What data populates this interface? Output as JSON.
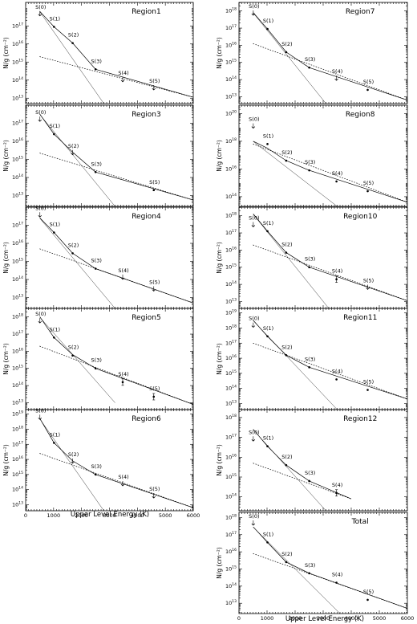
{
  "figure": {
    "xlabel": "Upper Level Energy (K)",
    "ylabel": "N/g (cm⁻²)",
    "x_ticks": [
      0,
      1000,
      2000,
      3000,
      4000,
      5000,
      6000
    ]
  },
  "chart_data": [
    {
      "type": "scatter",
      "title": "Region1",
      "xlim": [
        0,
        6000
      ],
      "ylim_log10": [
        12.7,
        18.3
      ],
      "y_ticks_log10": [
        13,
        14,
        15,
        16,
        17
      ],
      "points": [
        {
          "label": "S(0)",
          "x": 510,
          "y_log10": 17.6,
          "kind": "upper_limit"
        },
        {
          "label": "S(1)",
          "x": 1015,
          "y_log10": 16.95,
          "kind": "detection"
        },
        {
          "label": "S(2)",
          "x": 1682,
          "y_log10": 16.05,
          "kind": "detection"
        },
        {
          "label": "S(3)",
          "x": 2504,
          "y_log10": 14.6,
          "kind": "detection"
        },
        {
          "label": "S(4)",
          "x": 3474,
          "y_log10": 13.95,
          "kind": "upper_limit"
        },
        {
          "label": "S(5)",
          "x": 4586,
          "y_log10": 13.5,
          "kind": "upper_limit"
        }
      ],
      "fits": [
        {
          "style": "dashed",
          "x": [
            500,
            6000
          ],
          "y_log10": [
            15.3,
            13.05
          ]
        },
        {
          "style": "dotted",
          "x": [
            500,
            2800
          ],
          "y_log10": [
            17.8,
            12.7
          ]
        },
        {
          "style": "solid",
          "x": [
            510,
            1015,
            1682,
            2504,
            6000
          ],
          "y_log10": [
            17.8,
            16.95,
            16.05,
            14.6,
            13.05
          ]
        }
      ]
    },
    {
      "type": "scatter",
      "title": "Region3",
      "xlim": [
        0,
        6000
      ],
      "ylim_log10": [
        12.4,
        18.0
      ],
      "y_ticks_log10": [
        13,
        14,
        15,
        16,
        17
      ],
      "points": [
        {
          "label": "S(0)",
          "x": 510,
          "y_log10": 17.15,
          "kind": "upper_limit"
        },
        {
          "label": "S(1)",
          "x": 1015,
          "y_log10": 16.4,
          "kind": "detection"
        },
        {
          "label": "S(2)",
          "x": 1682,
          "y_log10": 15.3,
          "kind": "upper_limit"
        },
        {
          "label": "S(3)",
          "x": 2504,
          "y_log10": 14.3,
          "kind": "detection"
        },
        {
          "label": "S(5)",
          "x": 4586,
          "y_log10": 13.3,
          "kind": "detection"
        }
      ],
      "fits": [
        {
          "style": "dashed",
          "x": [
            500,
            6000
          ],
          "y_log10": [
            15.35,
            12.75
          ]
        },
        {
          "style": "dotted",
          "x": [
            500,
            3200
          ],
          "y_log10": [
            17.5,
            12.4
          ]
        },
        {
          "style": "solid",
          "x": [
            510,
            1015,
            1682,
            2504,
            6000
          ],
          "y_log10": [
            17.5,
            16.4,
            15.4,
            14.3,
            12.75
          ]
        }
      ]
    },
    {
      "type": "scatter",
      "title": "Region4",
      "xlim": [
        0,
        6000
      ],
      "ylim_log10": [
        12.4,
        18.0
      ],
      "y_ticks_log10": [
        13,
        14,
        15,
        16,
        17
      ],
      "points": [
        {
          "label": "S(0)",
          "x": 510,
          "y_log10": 17.5,
          "kind": "upper_limit"
        },
        {
          "label": "S(1)",
          "x": 1015,
          "y_log10": 16.6,
          "kind": "detection"
        },
        {
          "label": "S(2)",
          "x": 1682,
          "y_log10": 15.45,
          "kind": "detection"
        },
        {
          "label": "S(3)",
          "x": 2504,
          "y_log10": 14.6,
          "kind": "detection"
        },
        {
          "label": "S(4)",
          "x": 3474,
          "y_log10": 14.05,
          "kind": "upper_limit"
        },
        {
          "label": "S(5)",
          "x": 4586,
          "y_log10": 13.4,
          "kind": "upper_limit"
        }
      ],
      "fits": [
        {
          "style": "dashed",
          "x": [
            500,
            6000
          ],
          "y_log10": [
            15.7,
            12.7
          ]
        },
        {
          "style": "dotted",
          "x": [
            500,
            3200
          ],
          "y_log10": [
            17.4,
            12.4
          ]
        },
        {
          "style": "solid",
          "x": [
            510,
            1015,
            1682,
            2504,
            6000
          ],
          "y_log10": [
            17.4,
            16.6,
            15.45,
            14.6,
            12.7
          ]
        }
      ]
    },
    {
      "type": "scatter",
      "title": "Region5",
      "xlim": [
        0,
        6000
      ],
      "ylim_log10": [
        12.6,
        18.5
      ],
      "y_ticks_log10": [
        13,
        14,
        15,
        16,
        17,
        18
      ],
      "points": [
        {
          "label": "S(0)",
          "x": 510,
          "y_log10": 17.7,
          "kind": "upper_limit"
        },
        {
          "label": "S(1)",
          "x": 1015,
          "y_log10": 16.8,
          "kind": "detection"
        },
        {
          "label": "S(2)",
          "x": 1682,
          "y_log10": 15.75,
          "kind": "detection"
        },
        {
          "label": "S(3)",
          "x": 2504,
          "y_log10": 15.0,
          "kind": "detection"
        },
        {
          "label": "S(4)",
          "x": 3474,
          "y_log10": 14.2,
          "kind": "detection_errorbar"
        },
        {
          "label": "S(5)",
          "x": 4586,
          "y_log10": 13.35,
          "kind": "detection_errorbar"
        }
      ],
      "fits": [
        {
          "style": "dashed",
          "x": [
            500,
            6000
          ],
          "y_log10": [
            16.3,
            12.9
          ]
        },
        {
          "style": "dotted",
          "x": [
            500,
            3200
          ],
          "y_log10": [
            18.0,
            13.0
          ]
        },
        {
          "style": "solid",
          "x": [
            510,
            1015,
            1682,
            2504,
            6000
          ],
          "y_log10": [
            18.0,
            16.8,
            15.8,
            15.0,
            12.9
          ]
        }
      ]
    },
    {
      "type": "scatter",
      "title": "Region6",
      "xlim": [
        0,
        6000
      ],
      "ylim_log10": [
        12.6,
        19.3
      ],
      "y_ticks_log10": [
        13,
        14,
        15,
        16,
        17,
        18,
        19
      ],
      "points": [
        {
          "label": "S(0)",
          "x": 510,
          "y_log10": 18.7,
          "kind": "upper_limit"
        },
        {
          "label": "S(1)",
          "x": 1015,
          "y_log10": 17.1,
          "kind": "detection"
        },
        {
          "label": "S(2)",
          "x": 1682,
          "y_log10": 15.8,
          "kind": "upper_limit"
        },
        {
          "label": "S(3)",
          "x": 2504,
          "y_log10": 15.0,
          "kind": "detection"
        },
        {
          "label": "S(4)",
          "x": 3474,
          "y_log10": 14.3,
          "kind": "upper_limit"
        },
        {
          "label": "S(5)",
          "x": 4586,
          "y_log10": 13.5,
          "kind": "upper_limit"
        }
      ],
      "fits": [
        {
          "style": "dashed",
          "x": [
            500,
            6000
          ],
          "y_log10": [
            16.4,
            12.8
          ]
        },
        {
          "style": "dotted",
          "x": [
            500,
            2800
          ],
          "y_log10": [
            18.7,
            12.6
          ]
        },
        {
          "style": "solid",
          "x": [
            510,
            1015,
            1682,
            2504,
            6000
          ],
          "y_log10": [
            18.7,
            17.1,
            15.9,
            15.0,
            12.8
          ]
        }
      ]
    },
    {
      "type": "scatter",
      "title": "Region7",
      "xlim": [
        0,
        6000
      ],
      "ylim_log10": [
        12.6,
        18.5
      ],
      "y_ticks_log10": [
        13,
        14,
        15,
        16,
        17,
        18
      ],
      "points": [
        {
          "label": "S(0)",
          "x": 510,
          "y_log10": 17.8,
          "kind": "upper_limit"
        },
        {
          "label": "S(1)",
          "x": 1015,
          "y_log10": 16.95,
          "kind": "detection"
        },
        {
          "label": "S(2)",
          "x": 1682,
          "y_log10": 15.6,
          "kind": "detection"
        },
        {
          "label": "S(3)",
          "x": 2504,
          "y_log10": 14.7,
          "kind": "detection"
        },
        {
          "label": "S(4)",
          "x": 3474,
          "y_log10": 14.0,
          "kind": "upper_limit"
        },
        {
          "label": "S(5)",
          "x": 4586,
          "y_log10": 13.4,
          "kind": "detection"
        }
      ],
      "fits": [
        {
          "style": "dashed",
          "x": [
            500,
            6000
          ],
          "y_log10": [
            16.1,
            12.8
          ]
        },
        {
          "style": "dotted",
          "x": [
            500,
            3100
          ],
          "y_log10": [
            17.9,
            12.6
          ]
        },
        {
          "style": "solid",
          "x": [
            510,
            1015,
            1682,
            2504,
            6000
          ],
          "y_log10": [
            17.9,
            16.95,
            15.6,
            14.7,
            12.8
          ]
        }
      ]
    },
    {
      "type": "scatter",
      "title": "Region8",
      "xlim": [
        0,
        6000
      ],
      "ylim_log10": [
        13.3,
        20.6
      ],
      "y_ticks_log10": [
        14,
        16,
        18,
        20
      ],
      "points": [
        {
          "label": "S(0)",
          "x": 510,
          "y_log10": 19.0,
          "kind": "upper_limit"
        },
        {
          "label": "S(1)",
          "x": 1015,
          "y_log10": 17.8,
          "kind": "detection"
        },
        {
          "label": "S(2)",
          "x": 1682,
          "y_log10": 16.6,
          "kind": "detection"
        },
        {
          "label": "S(3)",
          "x": 2504,
          "y_log10": 15.9,
          "kind": "detection"
        },
        {
          "label": "S(4)",
          "x": 3474,
          "y_log10": 15.1,
          "kind": "detection"
        },
        {
          "label": "S(5)",
          "x": 4586,
          "y_log10": 14.4,
          "kind": "detection"
        }
      ],
      "fits": [
        {
          "style": "dashed",
          "x": [
            500,
            6000
          ],
          "y_log10": [
            17.8,
            13.6
          ]
        },
        {
          "style": "dotted",
          "x": [
            500,
            3500
          ],
          "y_log10": [
            18.0,
            13.3
          ]
        },
        {
          "style": "solid",
          "x": [
            510,
            1015,
            1682,
            2504,
            6000
          ],
          "y_log10": [
            18.0,
            17.5,
            16.6,
            15.9,
            13.6
          ]
        }
      ]
    },
    {
      "type": "scatter",
      "title": "Region10",
      "xlim": [
        0,
        6000
      ],
      "ylim_log10": [
        12.6,
        18.5
      ],
      "y_ticks_log10": [
        13,
        14,
        15,
        16,
        17,
        18
      ],
      "points": [
        {
          "label": "S(0)",
          "x": 510,
          "y_log10": 17.4,
          "kind": "upper_limit"
        },
        {
          "label": "S(1)",
          "x": 1015,
          "y_log10": 17.1,
          "kind": "detection"
        },
        {
          "label": "S(2)",
          "x": 1682,
          "y_log10": 15.85,
          "kind": "detection"
        },
        {
          "label": "S(3)",
          "x": 2504,
          "y_log10": 15.0,
          "kind": "detection"
        },
        {
          "label": "S(4)",
          "x": 3474,
          "y_log10": 14.3,
          "kind": "detection_errorbar"
        },
        {
          "label": "S(5)",
          "x": 4586,
          "y_log10": 13.75,
          "kind": "upper_limit"
        }
      ],
      "fits": [
        {
          "style": "dashed",
          "x": [
            500,
            6000
          ],
          "y_log10": [
            16.3,
            13.05
          ]
        },
        {
          "style": "dotted",
          "x": [
            500,
            3200
          ],
          "y_log10": [
            18.1,
            12.6
          ]
        },
        {
          "style": "solid",
          "x": [
            510,
            1015,
            1682,
            2504,
            6000
          ],
          "y_log10": [
            18.1,
            17.1,
            15.85,
            15.0,
            13.05
          ]
        }
      ]
    },
    {
      "type": "scatter",
      "title": "Region11",
      "xlim": [
        0,
        6000
      ],
      "ylim_log10": [
        12.6,
        19.3
      ],
      "y_ticks_log10": [
        13,
        14,
        15,
        16,
        17,
        18,
        19
      ],
      "points": [
        {
          "label": "S(0)",
          "x": 510,
          "y_log10": 18.1,
          "kind": "upper_limit"
        },
        {
          "label": "S(1)",
          "x": 1015,
          "y_log10": 17.45,
          "kind": "detection"
        },
        {
          "label": "S(2)",
          "x": 1682,
          "y_log10": 16.2,
          "kind": "detection"
        },
        {
          "label": "S(3)",
          "x": 2504,
          "y_log10": 15.4,
          "kind": "detection"
        },
        {
          "label": "S(4)",
          "x": 3474,
          "y_log10": 14.6,
          "kind": "detection"
        },
        {
          "label": "S(5)",
          "x": 4586,
          "y_log10": 13.9,
          "kind": "detection"
        }
      ],
      "fits": [
        {
          "style": "dashed",
          "x": [
            500,
            6000
          ],
          "y_log10": [
            17.0,
            13.3
          ]
        },
        {
          "style": "dotted",
          "x": [
            500,
            3500
          ],
          "y_log10": [
            18.5,
            12.6
          ]
        },
        {
          "style": "solid",
          "x": [
            510,
            1015,
            1682,
            2504,
            6000
          ],
          "y_log10": [
            18.5,
            17.45,
            16.2,
            15.4,
            13.3
          ]
        }
      ]
    },
    {
      "type": "scatter",
      "title": "Region12",
      "xlim": [
        0,
        6000
      ],
      "ylim_log10": [
        13.3,
        18.4
      ],
      "y_ticks_log10": [
        14,
        15,
        16,
        17,
        18
      ],
      "points": [
        {
          "label": "S(0)",
          "x": 510,
          "y_log10": 16.85,
          "kind": "upper_limit"
        },
        {
          "label": "S(1)",
          "x": 1015,
          "y_log10": 16.55,
          "kind": "detection"
        },
        {
          "label": "S(2)",
          "x": 1682,
          "y_log10": 15.6,
          "kind": "detection"
        },
        {
          "label": "S(3)",
          "x": 2504,
          "y_log10": 14.8,
          "kind": "detection"
        },
        {
          "label": "S(4)",
          "x": 3474,
          "y_log10": 14.2,
          "kind": "detection_errorbar"
        }
      ],
      "fits": [
        {
          "style": "dashed",
          "x": [
            500,
            4000
          ],
          "y_log10": [
            15.7,
            13.9
          ]
        },
        {
          "style": "dotted",
          "x": [
            500,
            3100
          ],
          "y_log10": [
            17.4,
            13.3
          ]
        },
        {
          "style": "solid",
          "x": [
            510,
            1015,
            1682,
            2504,
            4000
          ],
          "y_log10": [
            17.4,
            16.55,
            15.6,
            14.8,
            13.9
          ]
        }
      ]
    },
    {
      "type": "scatter",
      "title": "Total",
      "xlim": [
        0,
        6000
      ],
      "ylim_log10": [
        12.4,
        18.3
      ],
      "y_ticks_log10": [
        13,
        14,
        15,
        16,
        17,
        18
      ],
      "points": [
        {
          "label": "S(0)",
          "x": 510,
          "y_log10": 17.6,
          "kind": "upper_limit"
        },
        {
          "label": "S(1)",
          "x": 1015,
          "y_log10": 16.55,
          "kind": "detection"
        },
        {
          "label": "S(2)",
          "x": 1682,
          "y_log10": 15.4,
          "kind": "detection"
        },
        {
          "label": "S(3)",
          "x": 2504,
          "y_log10": 14.75,
          "kind": "detection"
        },
        {
          "label": "S(4)",
          "x": 3474,
          "y_log10": 14.2,
          "kind": "detection"
        },
        {
          "label": "S(5)",
          "x": 4586,
          "y_log10": 13.2,
          "kind": "detection"
        }
      ],
      "fits": [
        {
          "style": "dashed",
          "x": [
            500,
            6000
          ],
          "y_log10": [
            15.9,
            12.7
          ]
        },
        {
          "style": "dotted",
          "x": [
            500,
            3600
          ],
          "y_log10": [
            17.45,
            12.4
          ]
        },
        {
          "style": "solid",
          "x": [
            510,
            1015,
            1682,
            2504,
            6000
          ],
          "y_log10": [
            17.45,
            16.55,
            15.4,
            14.75,
            12.7
          ]
        }
      ]
    }
  ]
}
